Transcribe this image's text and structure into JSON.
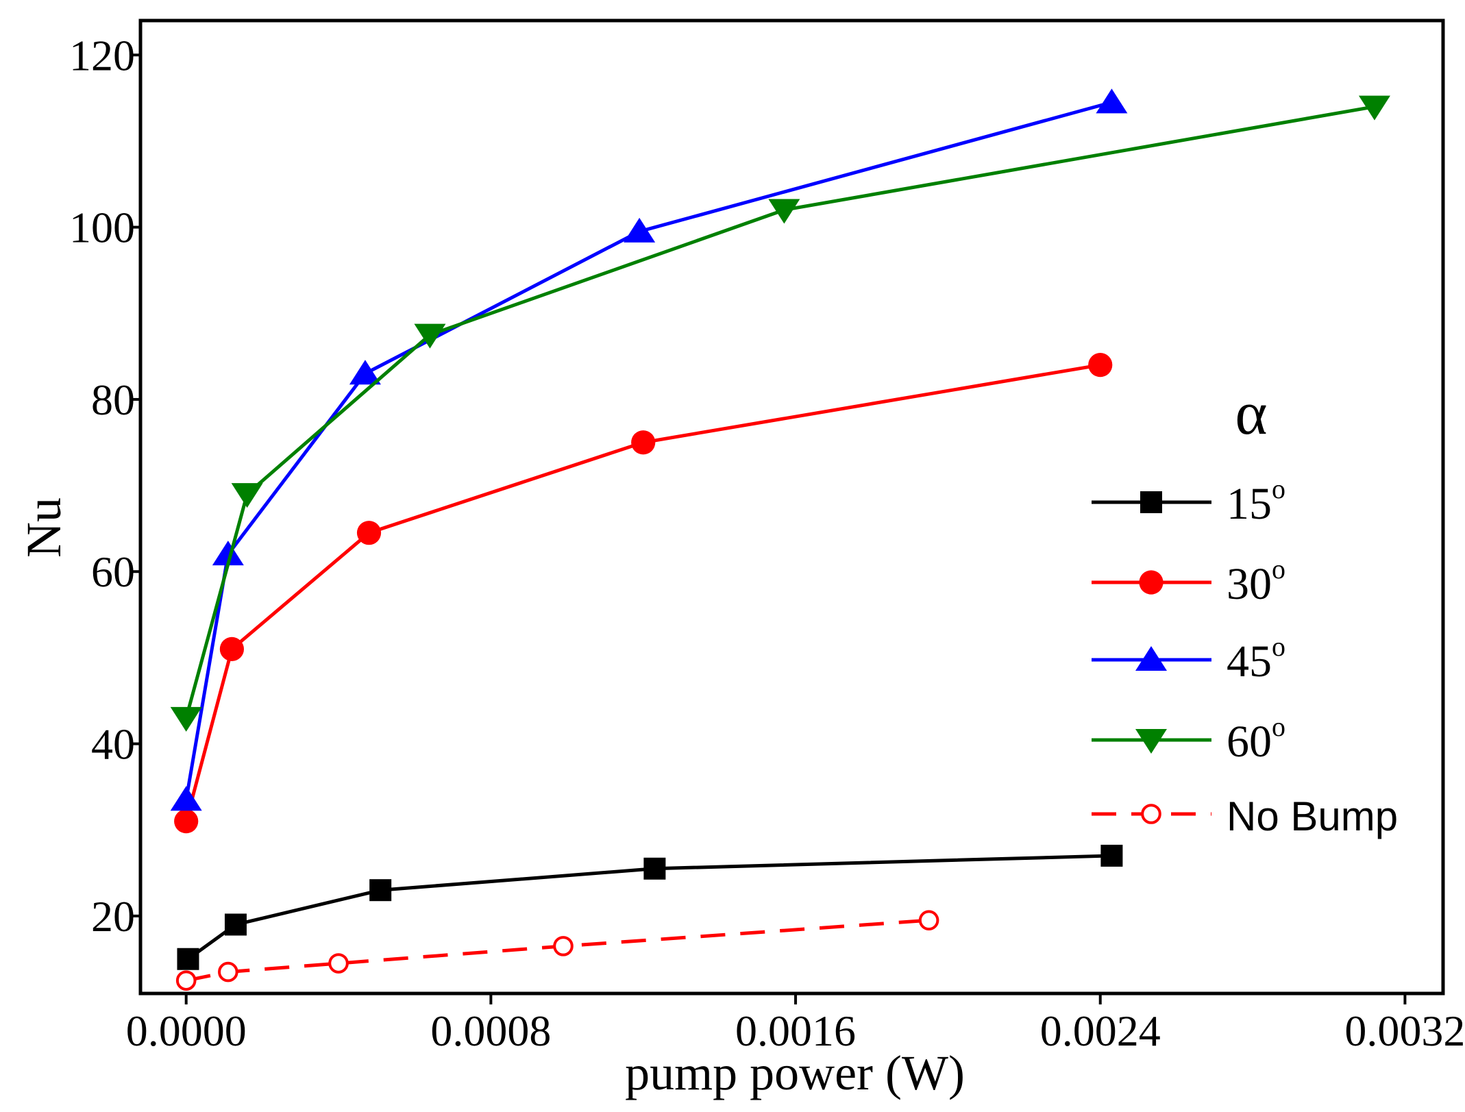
{
  "chart_data": {
    "type": "line",
    "title": "",
    "xlabel": "pump power (W)",
    "ylabel": "Nu",
    "xlim": [
      -0.00012,
      0.0033
    ],
    "ylim": [
      11,
      124
    ],
    "xticks": [
      "0.0000",
      "0.0008",
      "0.0016",
      "0.0024",
      "0.0032"
    ],
    "xtick_values": [
      0,
      0.0008,
      0.0016,
      0.0024,
      0.0032
    ],
    "yticks": [
      "20",
      "40",
      "60",
      "80",
      "100",
      "120"
    ],
    "ytick_values": [
      20,
      40,
      60,
      80,
      100,
      120
    ],
    "grid": false,
    "legend_title": "α",
    "legend_position": "right",
    "series": [
      {
        "name": "15",
        "sup": "o",
        "color": "#000000",
        "marker": "square",
        "dash": "solid",
        "x": [
          5e-06,
          0.00013,
          0.00051,
          0.00123,
          0.00243
        ],
        "y": [
          15.0,
          19.0,
          23.0,
          25.5,
          27.0
        ]
      },
      {
        "name": "30",
        "sup": "o",
        "color": "#ff0000",
        "marker": "circle",
        "dash": "solid",
        "x": [
          0.0,
          0.00012,
          0.00048,
          0.0012,
          0.0024
        ],
        "y": [
          31.0,
          51.0,
          64.5,
          75.0,
          84.0
        ]
      },
      {
        "name": "45",
        "sup": "o",
        "color": "#0000ff",
        "marker": "triangle-up",
        "dash": "solid",
        "x": [
          0.0,
          0.00011,
          0.00047,
          0.00119,
          0.00243
        ],
        "y": [
          33.5,
          62.0,
          83.0,
          99.5,
          114.5
        ]
      },
      {
        "name": "60",
        "sup": "o",
        "color": "#008000",
        "marker": "triangle-down",
        "dash": "solid",
        "x": [
          0.0,
          0.00016,
          0.00064,
          0.00157,
          0.00312
        ],
        "y": [
          43.0,
          69.0,
          87.5,
          102.0,
          114.0
        ]
      },
      {
        "name": "No Bump",
        "sup": "",
        "color": "#ff0000",
        "marker": "open-circle",
        "dash": "dashed",
        "x": [
          0.0,
          0.00011,
          0.0004,
          0.00099,
          0.00195
        ],
        "y": [
          12.5,
          13.5,
          14.5,
          16.5,
          19.5
        ]
      }
    ]
  }
}
